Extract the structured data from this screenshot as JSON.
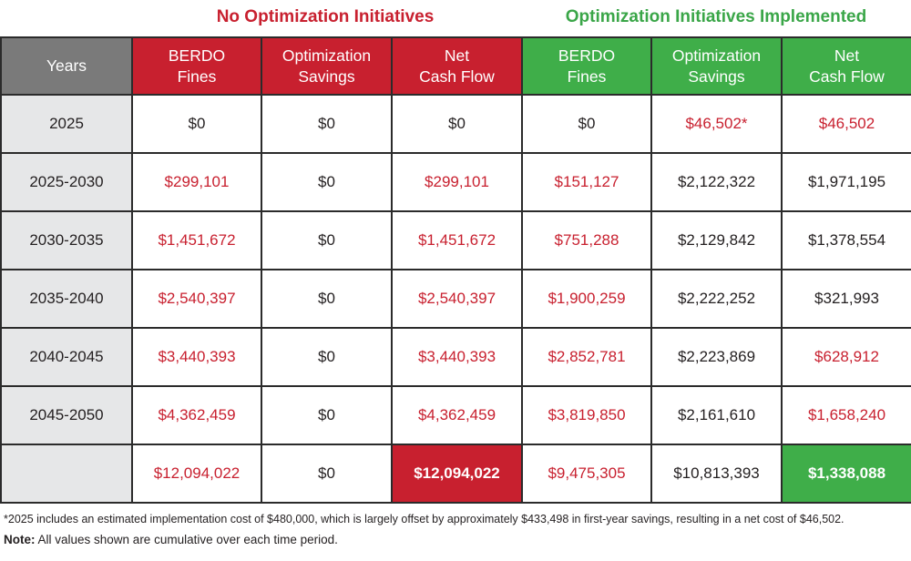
{
  "groups": {
    "no_optimization": "No Optimization Initiatives",
    "optimization": "Optimization Initiatives Implemented"
  },
  "headers": {
    "years": "Years",
    "no_opt": [
      {
        "line1": "BERDO",
        "line2": "Fines"
      },
      {
        "line1": "Optimization",
        "line2": "Savings"
      },
      {
        "line1": "Net",
        "line2": "Cash Flow"
      }
    ],
    "opt": [
      {
        "line1": "BERDO",
        "line2": "Fines"
      },
      {
        "line1": "Optimization",
        "line2": "Savings"
      },
      {
        "line1": "Net",
        "line2": "Cash Flow"
      }
    ]
  },
  "colors": {
    "red": "#c8202f",
    "green": "#3fae49",
    "gray_header": "#7a7a7a",
    "year_cell": "#e6e7e8",
    "text": "#231f20"
  },
  "chart_data": {
    "type": "table",
    "columns": [
      "Years",
      "BERDO Fines",
      "Optimization Savings",
      "Net Cash Flow",
      "BERDO Fines",
      "Optimization Savings",
      "Net Cash Flow"
    ],
    "rows": [
      [
        "2025",
        "$0",
        "$0",
        "$0",
        "$0",
        "$46,502*",
        "$46,502"
      ],
      [
        "2025-2030",
        "$299,101",
        "$0",
        "$299,101",
        "$151,127",
        "$2,122,322",
        "$1,971,195"
      ],
      [
        "2030-2035",
        "$1,451,672",
        "$0",
        "$1,451,672",
        "$751,288",
        "$2,129,842",
        "$1,378,554"
      ],
      [
        "2035-2040",
        "$2,540,397",
        "$0",
        "$2,540,397",
        "$1,900,259",
        "$2,222,252",
        "$321,993"
      ],
      [
        "2040-2045",
        "$3,440,393",
        "$0",
        "$3,440,393",
        "$2,852,781",
        "$2,223,869",
        "$628,912"
      ],
      [
        "2045-2050",
        "$4,362,459",
        "$0",
        "$4,362,459",
        "$3,819,850",
        "$2,161,610",
        "$1,658,240"
      ],
      [
        "",
        "$12,094,022",
        "$0",
        "$12,094,022",
        "$9,475,305",
        "$10,813,393",
        "$1,338,088"
      ]
    ],
    "cell_colors": [
      [
        "year",
        "black",
        "black",
        "black",
        "black",
        "red",
        "red"
      ],
      [
        "year",
        "red",
        "black",
        "red",
        "red",
        "black",
        "black"
      ],
      [
        "year",
        "red",
        "black",
        "red",
        "red",
        "black",
        "black"
      ],
      [
        "year",
        "red",
        "black",
        "red",
        "red",
        "black",
        "black"
      ],
      [
        "year",
        "red",
        "black",
        "red",
        "red",
        "black",
        "red"
      ],
      [
        "year",
        "red",
        "black",
        "red",
        "red",
        "black",
        "red"
      ],
      [
        "year",
        "red",
        "black",
        "total-red-fill",
        "red",
        "black",
        "total-green-fill"
      ]
    ]
  },
  "footnote": "*2025 includes an estimated implementation cost of $480,000, which is largely offset by approximately $433,498 in first-year savings, resulting in a net cost of $46,502.",
  "note": {
    "label": "Note:",
    "text": " All values shown are cumulative over each time period."
  }
}
